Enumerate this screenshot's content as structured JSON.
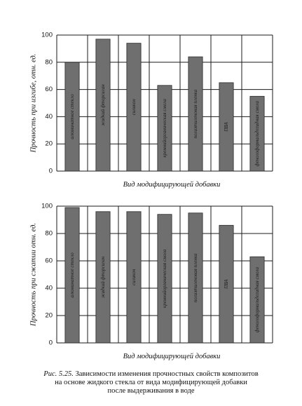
{
  "chart_data": [
    {
      "type": "bar",
      "categories": [
        "алюминатное стекло",
        "жидкий фторсилан",
        "силикон",
        "кремнийорганическая смола",
        "полиэтиленовая пленка",
        "ПВА",
        "фенолоформальдегидная смола"
      ],
      "values": [
        80,
        97,
        94,
        63,
        84,
        65,
        55
      ],
      "ylabel": "Прочность при изгибе, отн. ед.",
      "xlabel": "Вид модифицирующей добавки",
      "ylim": [
        0,
        100
      ],
      "yticks": [
        0,
        20,
        40,
        60,
        80,
        100
      ],
      "grid": true
    },
    {
      "type": "bar",
      "categories": [
        "алюминатное стекло",
        "жидкий фторсилан",
        "силикон",
        "кремнийорганическая смола",
        "полиэтиленовая пленка",
        "ПВА",
        "фенолоформальдегидная смола"
      ],
      "values": [
        99,
        96,
        96,
        94,
        95,
        86,
        63
      ],
      "ylabel": "Прочность при сжатии отн. ед.",
      "xlabel": "Вид модифицирующей добавки",
      "ylim": [
        0,
        100
      ],
      "yticks": [
        0,
        20,
        40,
        60,
        80,
        100
      ],
      "grid": true
    }
  ],
  "caption": {
    "number": "Рис. 5.25.",
    "line1": "Зависимости изменения прочностных свойств композитов",
    "line2": "на основе жидкого стекла от вида модифицирующей добавки",
    "line3": "после выдерживания в воде"
  },
  "colors": {
    "bar": "#6f6f6f",
    "bar_edge": "#2a2a2a",
    "grid": "#1a1a1a",
    "text": "#111111"
  }
}
